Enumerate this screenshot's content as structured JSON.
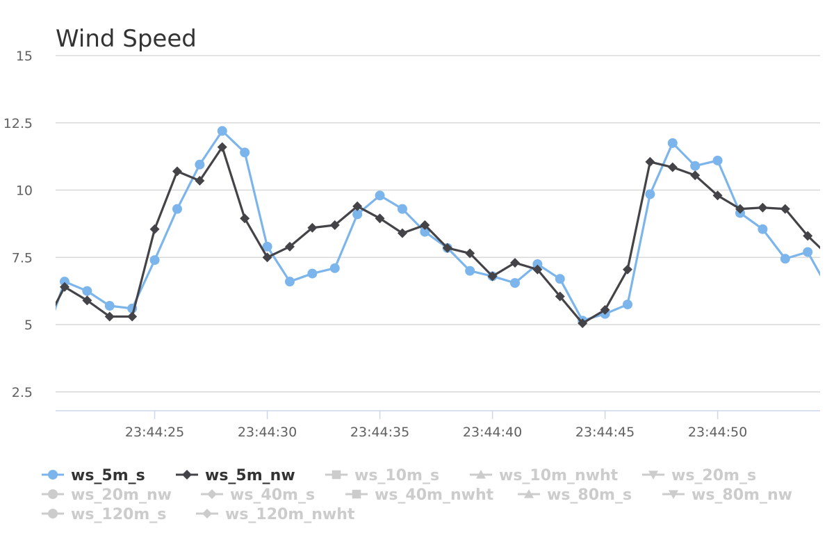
{
  "chart_data": {
    "type": "line",
    "title": "Wind Speed",
    "xlabel": "",
    "ylabel": "",
    "ylim": [
      1.8,
      15
    ],
    "yticks": [
      "2.5",
      "5",
      "7.5",
      "10",
      "12.5",
      "15"
    ],
    "xticks": [
      "23:44:25",
      "23:44:30",
      "23:44:35",
      "23:44:40",
      "23:44:45",
      "23:44:50"
    ],
    "x_seconds": [
      20,
      21,
      22,
      23,
      24,
      25,
      26,
      27,
      28,
      29,
      30,
      31,
      32,
      33,
      34,
      35,
      36,
      37,
      38,
      39,
      40,
      41,
      42,
      43,
      44,
      45,
      46,
      47,
      48,
      49,
      50,
      51,
      52,
      53,
      54,
      55
    ],
    "xlim_seconds": [
      20.6,
      54.55
    ],
    "grid": true,
    "legend_position": "bottom-left",
    "series": [
      {
        "name": "ws_5m_s",
        "color": "#7cb5ec",
        "marker": "circle",
        "visible": true,
        "values": [
          4.2,
          6.6,
          6.25,
          5.7,
          5.6,
          7.4,
          9.3,
          10.95,
          12.2,
          11.4,
          7.9,
          6.6,
          6.9,
          7.1,
          9.1,
          9.8,
          9.3,
          8.45,
          7.85,
          7.0,
          6.8,
          6.55,
          7.25,
          6.7,
          5.15,
          5.4,
          5.75,
          9.85,
          11.75,
          10.9,
          11.1,
          9.15,
          8.55,
          7.45,
          7.7,
          6.2
        ]
      },
      {
        "name": "ws_5m_nw",
        "color": "#434348",
        "marker": "diamond",
        "visible": true,
        "values": [
          4.8,
          6.4,
          5.9,
          5.3,
          5.3,
          8.55,
          10.7,
          10.35,
          11.6,
          8.95,
          7.5,
          7.9,
          8.6,
          8.7,
          9.4,
          8.95,
          8.4,
          8.7,
          7.85,
          7.65,
          6.8,
          7.3,
          7.05,
          6.05,
          5.05,
          5.55,
          7.05,
          11.05,
          10.85,
          10.55,
          9.8,
          9.3,
          9.35,
          9.3,
          8.3,
          7.5
        ]
      },
      {
        "name": "ws_10m_s",
        "color": "#cccccc",
        "marker": "square",
        "visible": false
      },
      {
        "name": "ws_10m_nwht",
        "color": "#cccccc",
        "marker": "triangle",
        "visible": false
      },
      {
        "name": "ws_20m_s",
        "color": "#cccccc",
        "marker": "triangle-down",
        "visible": false
      },
      {
        "name": "ws_20m_nw",
        "color": "#cccccc",
        "marker": "circle",
        "visible": false
      },
      {
        "name": "ws_40m_s",
        "color": "#cccccc",
        "marker": "diamond",
        "visible": false
      },
      {
        "name": "ws_40m_nwht",
        "color": "#cccccc",
        "marker": "square",
        "visible": false
      },
      {
        "name": "ws_80m_s",
        "color": "#cccccc",
        "marker": "triangle",
        "visible": false
      },
      {
        "name": "ws_80m_nw",
        "color": "#cccccc",
        "marker": "triangle-down",
        "visible": false
      },
      {
        "name": "ws_120m_s",
        "color": "#cccccc",
        "marker": "circle",
        "visible": false
      },
      {
        "name": "ws_120m_nwht",
        "color": "#cccccc",
        "marker": "diamond",
        "visible": false
      }
    ],
    "colors": {
      "visible_legend_text": "#333333",
      "hidden_legend_text": "#cccccc",
      "axis_text": "#606060",
      "grid": "#d8d8d8",
      "axis_line": "#ccd6eb"
    }
  }
}
